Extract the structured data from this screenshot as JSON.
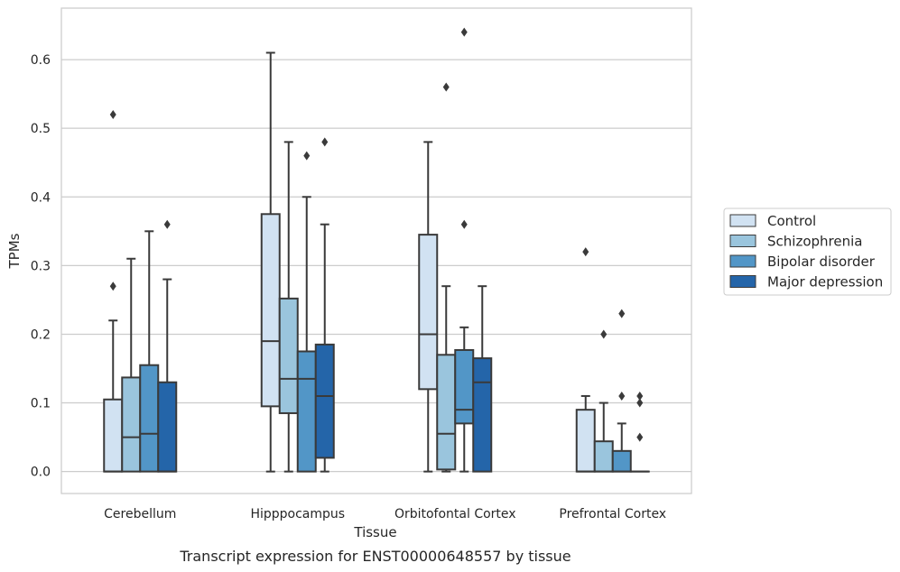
{
  "caption": "Transcript expression for ENST00000648557 by tissue",
  "chart_data": {
    "type": "box",
    "xlabel": "Tissue",
    "ylabel": "TPMs",
    "ylim": [
      -0.032,
      0.675
    ],
    "yticks": [
      "0.0",
      "0.1",
      "0.2",
      "0.3",
      "0.4",
      "0.5",
      "0.6"
    ],
    "grid": true,
    "legend_position": "right",
    "categories": [
      "Cerebellum",
      "Hipppocampus",
      "Orbitofontal Cortex",
      "Prefrontal Cortex"
    ],
    "series": [
      {
        "name": "Control",
        "color": "#d1e2f2",
        "boxes": [
          {
            "whisker_low": 0.0,
            "q1": 0.0,
            "median": 0.0,
            "q3": 0.105,
            "whisker_high": 0.22,
            "outliers": [
              0.27,
              0.52
            ]
          },
          {
            "whisker_low": 0.0,
            "q1": 0.095,
            "median": 0.19,
            "q3": 0.375,
            "whisker_high": 0.61,
            "outliers": []
          },
          {
            "whisker_low": 0.0,
            "q1": 0.12,
            "median": 0.2,
            "q3": 0.345,
            "whisker_high": 0.48,
            "outliers": []
          },
          {
            "whisker_low": 0.0,
            "q1": 0.0,
            "median": 0.0,
            "q3": 0.09,
            "whisker_high": 0.11,
            "outliers": [
              0.32
            ]
          }
        ]
      },
      {
        "name": "Schizophrenia",
        "color": "#9ac5dd",
        "boxes": [
          {
            "whisker_low": 0.0,
            "q1": 0.0,
            "median": 0.05,
            "q3": 0.137,
            "whisker_high": 0.31,
            "outliers": []
          },
          {
            "whisker_low": 0.0,
            "q1": 0.085,
            "median": 0.135,
            "q3": 0.252,
            "whisker_high": 0.48,
            "outliers": []
          },
          {
            "whisker_low": 0.0,
            "q1": 0.003,
            "median": 0.055,
            "q3": 0.17,
            "whisker_high": 0.27,
            "outliers": [
              0.56
            ]
          },
          {
            "whisker_low": 0.0,
            "q1": 0.0,
            "median": 0.0,
            "q3": 0.044,
            "whisker_high": 0.1,
            "outliers": [
              0.2
            ]
          }
        ]
      },
      {
        "name": "Bipolar disorder",
        "color": "#5296c7",
        "boxes": [
          {
            "whisker_low": 0.0,
            "q1": 0.0,
            "median": 0.055,
            "q3": 0.155,
            "whisker_high": 0.35,
            "outliers": []
          },
          {
            "whisker_low": 0.0,
            "q1": 0.0,
            "median": 0.135,
            "q3": 0.175,
            "whisker_high": 0.4,
            "outliers": [
              0.46
            ]
          },
          {
            "whisker_low": 0.0,
            "q1": 0.07,
            "median": 0.09,
            "q3": 0.177,
            "whisker_high": 0.21,
            "outliers": [
              0.36,
              0.64
            ]
          },
          {
            "whisker_low": 0.0,
            "q1": 0.0,
            "median": 0.0,
            "q3": 0.03,
            "whisker_high": 0.07,
            "outliers": [
              0.11,
              0.23
            ]
          }
        ]
      },
      {
        "name": "Major depression",
        "color": "#2465a9",
        "boxes": [
          {
            "whisker_low": 0.0,
            "q1": 0.0,
            "median": 0.0,
            "q3": 0.13,
            "whisker_high": 0.28,
            "outliers": [
              0.36
            ]
          },
          {
            "whisker_low": 0.0,
            "q1": 0.02,
            "median": 0.11,
            "q3": 0.185,
            "whisker_high": 0.36,
            "outliers": [
              0.48
            ]
          },
          {
            "whisker_low": 0.0,
            "q1": 0.0,
            "median": 0.13,
            "q3": 0.165,
            "whisker_high": 0.27,
            "outliers": []
          },
          {
            "whisker_low": 0.0,
            "q1": 0.0,
            "median": 0.0,
            "q3": 0.0,
            "whisker_high": 0.0,
            "outliers": [
              0.05,
              0.1,
              0.11
            ]
          }
        ]
      }
    ]
  }
}
